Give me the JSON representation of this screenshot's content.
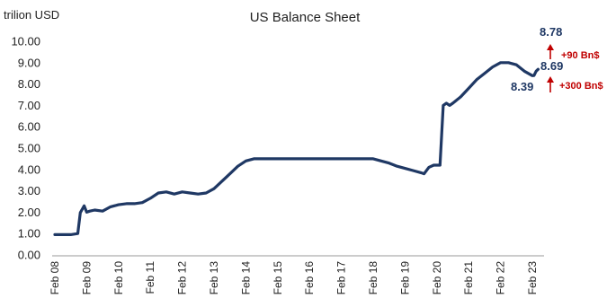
{
  "chart_data": {
    "type": "line",
    "title": "US Balance Sheet",
    "ylabel": "trilion USD",
    "ylim": [
      0,
      10
    ],
    "yticks": [
      "0.00",
      "1.00",
      "2.00",
      "3.00",
      "4.00",
      "5.00",
      "6.00",
      "7.00",
      "8.00",
      "9.00",
      "10.00"
    ],
    "xticks": [
      "Feb 08",
      "Feb 09",
      "Feb 10",
      "Feb 11",
      "Feb 12",
      "Feb 13",
      "Feb 14",
      "Feb 15",
      "Feb 16",
      "Feb 17",
      "Feb 18",
      "Feb 19",
      "Feb 20",
      "Feb 21",
      "Feb 22",
      "Feb 23"
    ],
    "grid": false,
    "series": [
      {
        "color": "#1f3864",
        "x": [
          2008.0,
          2008.5,
          2008.72,
          2008.8,
          2008.92,
          2009.0,
          2009.1,
          2009.25,
          2009.5,
          2009.75,
          2010.0,
          2010.25,
          2010.5,
          2010.75,
          2011.0,
          2011.25,
          2011.5,
          2011.75,
          2012.0,
          2012.25,
          2012.5,
          2012.75,
          2013.0,
          2013.25,
          2013.5,
          2013.75,
          2014.0,
          2014.25,
          2014.5,
          2014.75,
          2015.0,
          2015.5,
          2016.0,
          2016.5,
          2017.0,
          2017.5,
          2018.0,
          2018.25,
          2018.5,
          2018.75,
          2019.0,
          2019.25,
          2019.5,
          2019.6,
          2019.75,
          2019.9,
          2020.0,
          2020.1,
          2020.15,
          2020.2,
          2020.3,
          2020.4,
          2020.5,
          2020.75,
          2021.0,
          2021.25,
          2021.5,
          2021.75,
          2022.0,
          2022.25,
          2022.5,
          2022.75,
          2023.0,
          2023.05,
          2023.12,
          2023.18
        ],
        "values": [
          0.95,
          0.95,
          1.0,
          1.98,
          2.3,
          2.0,
          2.05,
          2.1,
          2.05,
          2.25,
          2.35,
          2.4,
          2.4,
          2.45,
          2.65,
          2.9,
          2.95,
          2.85,
          2.95,
          2.9,
          2.85,
          2.9,
          3.1,
          3.45,
          3.8,
          4.15,
          4.4,
          4.5,
          4.5,
          4.5,
          4.5,
          4.5,
          4.5,
          4.5,
          4.5,
          4.5,
          4.5,
          4.4,
          4.3,
          4.15,
          4.05,
          3.95,
          3.85,
          3.8,
          4.1,
          4.2,
          4.2,
          4.2,
          5.6,
          7.0,
          7.1,
          7.0,
          7.1,
          7.4,
          7.8,
          8.2,
          8.5,
          8.8,
          9.0,
          9.0,
          8.9,
          8.6,
          8.39,
          8.4,
          8.6,
          8.69
        ]
      }
    ],
    "annotations": {
      "peak_value": "8.78",
      "current_value": "8.69",
      "low_value": "8.39",
      "upper_change": "+90 Bn$",
      "lower_change": "+300 Bn$"
    },
    "colors": {
      "line": "#1f3864",
      "value_text": "#1f3864",
      "change_text": "#c00000",
      "arrow": "#c00000"
    }
  }
}
